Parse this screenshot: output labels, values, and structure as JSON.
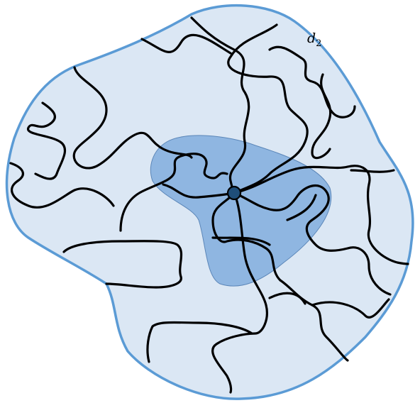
{
  "figure": {
    "label_main": "d",
    "label_subscript": "2"
  },
  "colors": {
    "outer_fill": "#dbe7f4",
    "outer_stroke": "#5b9bd5",
    "inner_fill": "#7aa8db",
    "curve": "#000000",
    "center_point": "#1f4e79"
  },
  "icons": [
    "outer-domain-shape",
    "inner-neighborhood-shape",
    "center-point",
    "random-curve"
  ]
}
